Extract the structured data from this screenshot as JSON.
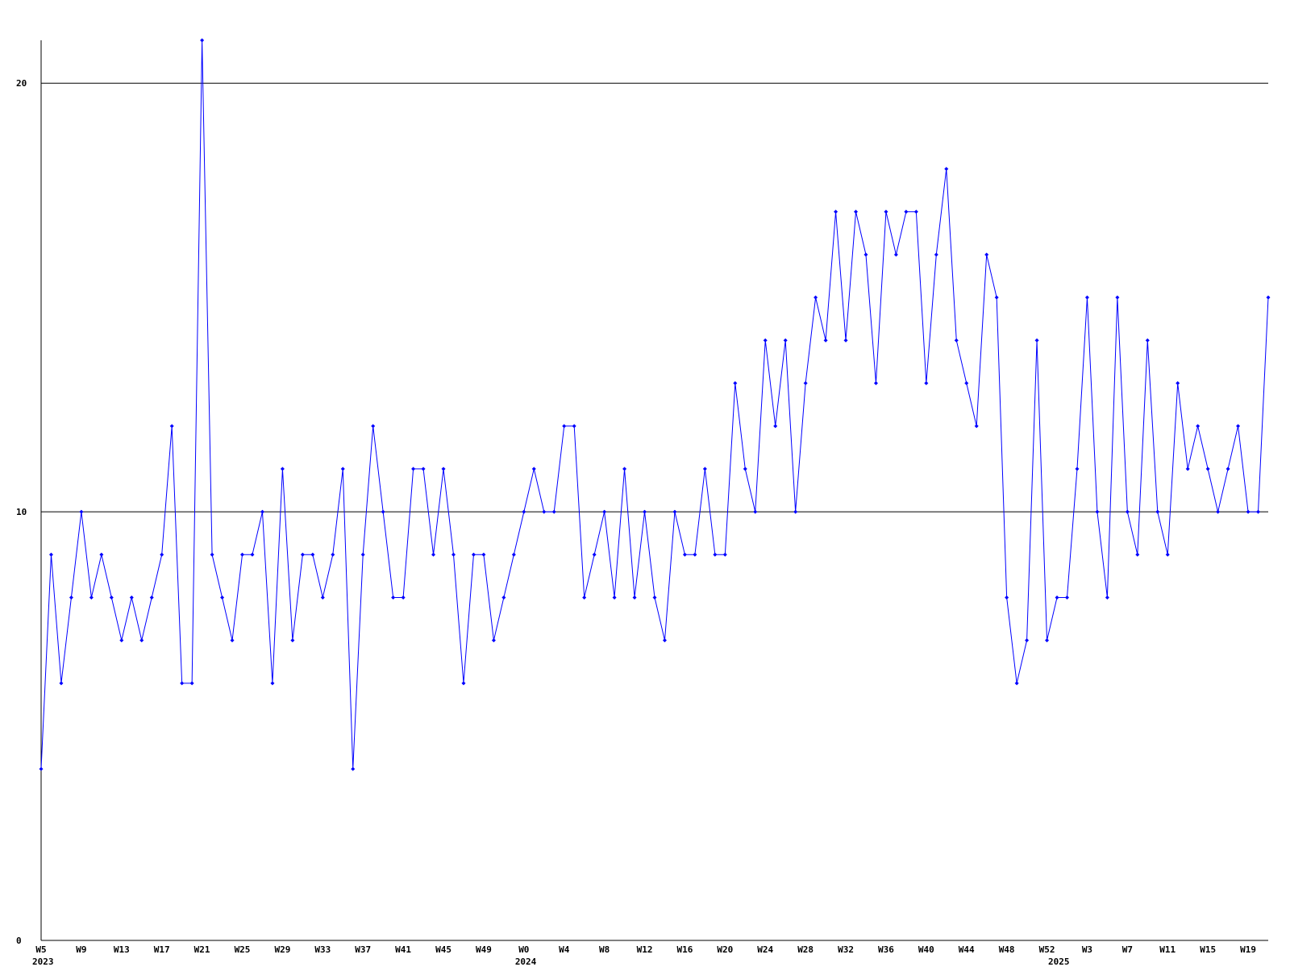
{
  "chart_data": {
    "type": "line",
    "categories": [
      "W5",
      null,
      null,
      null,
      "W9",
      null,
      null,
      null,
      "W13",
      null,
      null,
      null,
      "W17",
      null,
      null,
      null,
      "W21",
      null,
      null,
      null,
      "W25",
      null,
      null,
      null,
      "W29",
      null,
      null,
      null,
      "W33",
      null,
      null,
      null,
      "W37",
      null,
      null,
      null,
      "W41",
      null,
      null,
      null,
      "W45",
      null,
      null,
      null,
      "W49",
      null,
      null,
      null,
      "W0",
      null,
      null,
      null,
      "W4",
      null,
      null,
      null,
      "W8",
      null,
      null,
      null,
      "W12",
      null,
      null,
      null,
      "W16",
      null,
      null,
      null,
      "W20",
      null,
      null,
      null,
      "W24",
      null,
      null,
      null,
      "W28",
      null,
      null,
      null,
      "W32",
      null,
      null,
      null,
      "W36",
      null,
      null,
      null,
      "W40",
      null,
      null,
      null,
      "W44",
      null,
      null,
      null,
      "W48",
      null,
      null,
      null,
      "W52",
      null,
      null,
      null,
      "W3",
      null,
      null,
      null,
      "W7",
      null,
      null,
      null,
      "W11",
      null,
      null,
      null,
      "W15",
      null,
      null,
      null,
      "W19",
      null,
      null
    ],
    "category_years": [
      "2023",
      null,
      null,
      null,
      null,
      null,
      null,
      null,
      null,
      null,
      null,
      null,
      null,
      null,
      null,
      null,
      null,
      null,
      null,
      null,
      null,
      null,
      null,
      null,
      null,
      null,
      null,
      null,
      null,
      null,
      null,
      null,
      null,
      null,
      null,
      null,
      null,
      null,
      null,
      null,
      null,
      null,
      null,
      null,
      null,
      null,
      null,
      null,
      "2024",
      null,
      null,
      null,
      null,
      null,
      null,
      null,
      null,
      null,
      null,
      null,
      null,
      null,
      null,
      null,
      null,
      null,
      null,
      null,
      null,
      null,
      null,
      null,
      null,
      null,
      null,
      null,
      null,
      null,
      null,
      null,
      null,
      null,
      null,
      null,
      null,
      null,
      null,
      null,
      null,
      null,
      null,
      null,
      null,
      null,
      null,
      null,
      null,
      null,
      null,
      null,
      null,
      "2025",
      null,
      null,
      null,
      null,
      null,
      null,
      null,
      null,
      null,
      null,
      null,
      null,
      null,
      null,
      null,
      null,
      null,
      null,
      null,
      null,
      null
    ],
    "values": [
      4,
      9,
      6,
      8,
      10,
      8,
      9,
      8,
      7,
      8,
      7,
      8,
      9,
      12,
      6,
      6,
      21,
      9,
      8,
      7,
      9,
      9,
      10,
      6,
      11,
      7,
      9,
      9,
      8,
      9,
      11,
      4,
      9,
      12,
      10,
      8,
      8,
      11,
      11,
      9,
      11,
      9,
      6,
      9,
      9,
      7,
      8,
      9,
      10,
      11,
      10,
      10,
      12,
      12,
      8,
      9,
      10,
      8,
      11,
      8,
      10,
      8,
      7,
      10,
      9,
      9,
      11,
      9,
      9,
      13,
      11,
      10,
      14,
      12,
      14,
      10,
      13,
      15,
      14,
      17,
      14,
      17,
      16,
      13,
      17,
      16,
      17,
      17,
      13,
      16,
      18,
      14,
      13,
      12,
      16,
      15,
      8,
      6,
      7,
      14,
      7,
      8,
      8,
      11,
      15,
      10,
      8,
      15,
      10,
      9,
      14,
      10,
      9,
      13,
      11,
      12,
      11,
      10,
      11,
      12,
      10,
      10,
      15
    ],
    "color": "#0000ff",
    "ylim": [
      0,
      21
    ],
    "yticks": [
      0,
      10,
      20
    ],
    "grid": true
  }
}
